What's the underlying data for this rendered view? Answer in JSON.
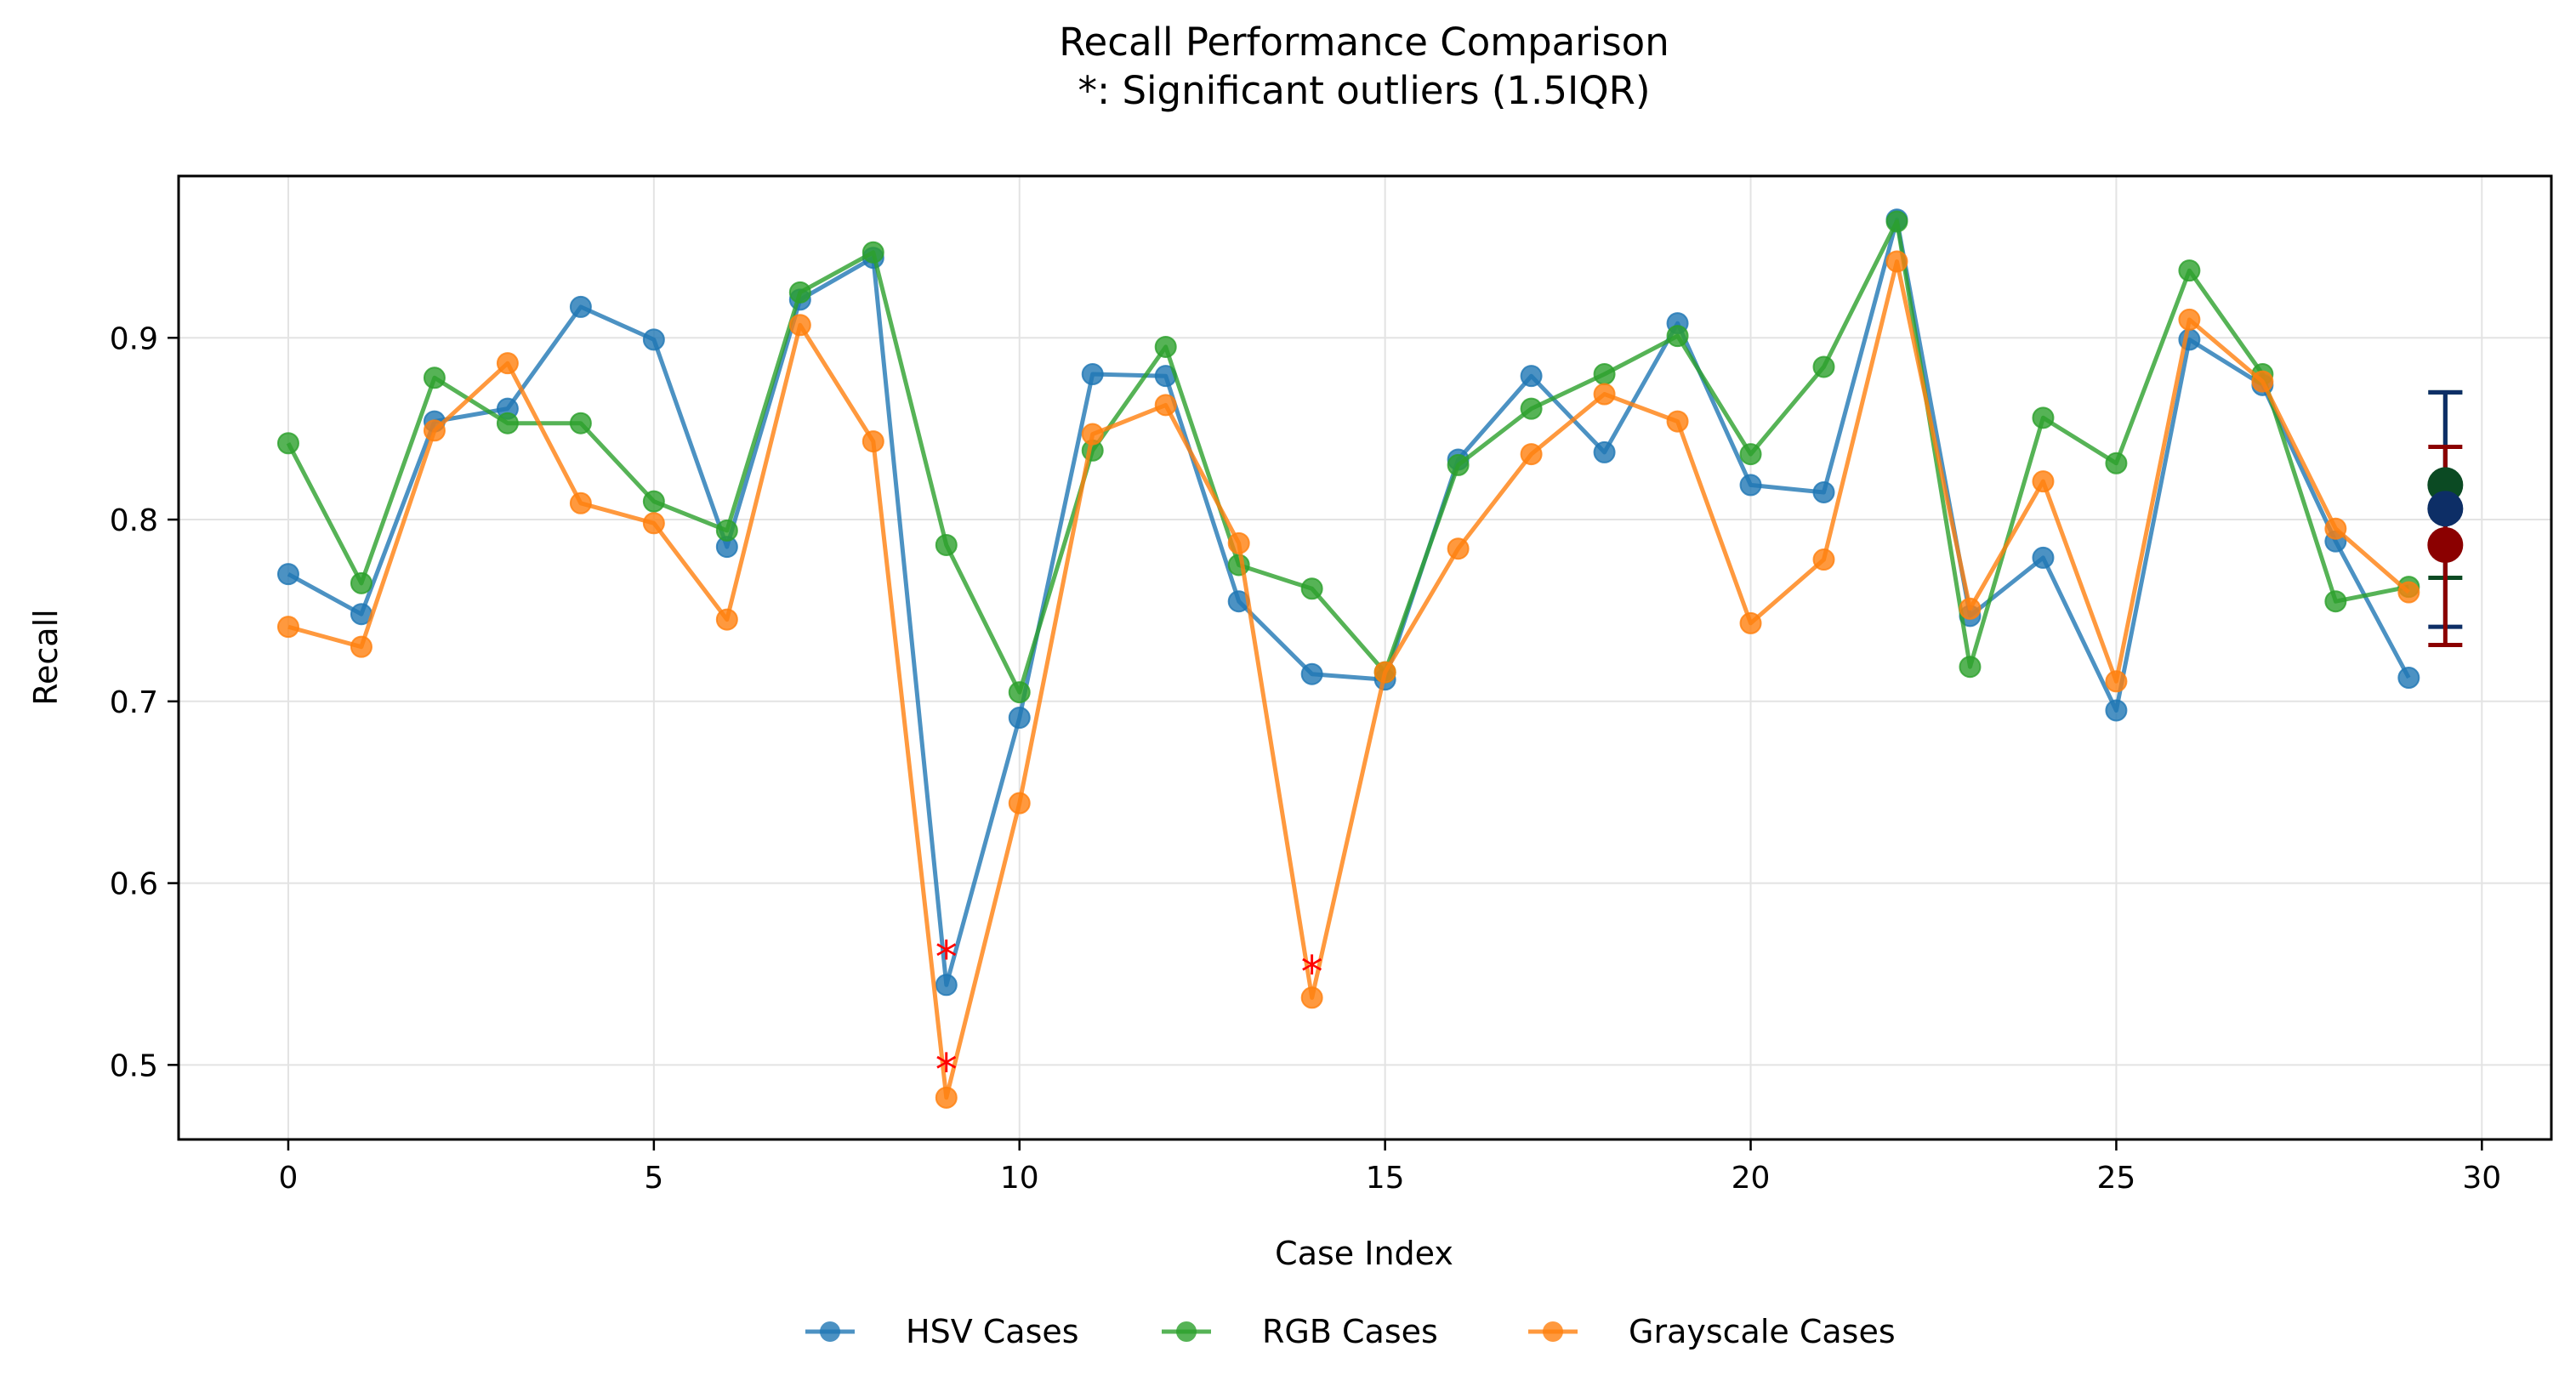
{
  "chart_data": {
    "type": "line",
    "title": "Recall Performance Comparison",
    "subtitle": "*: Significant outliers (1.5IQR)",
    "xlabel": "Case Index",
    "ylabel": "Recall",
    "xlim": [
      -1.5,
      30.95
    ],
    "ylim": [
      0.459,
      0.989
    ],
    "xticks": [
      0,
      5,
      10,
      15,
      20,
      25,
      30
    ],
    "yticks": [
      0.5,
      0.6,
      0.7,
      0.8,
      0.9
    ],
    "xtick_labels": [
      "0",
      "5",
      "10",
      "15",
      "20",
      "25",
      "30"
    ],
    "ytick_labels": [
      "0.5",
      "0.6",
      "0.7",
      "0.8",
      "0.9"
    ],
    "grid": true,
    "legend_position": "bottom-center",
    "x": [
      0,
      1,
      2,
      3,
      4,
      5,
      6,
      7,
      8,
      9,
      10,
      11,
      12,
      13,
      14,
      15,
      16,
      17,
      18,
      19,
      20,
      21,
      22,
      23,
      24,
      25,
      26,
      27,
      28,
      29
    ],
    "series": [
      {
        "name": "HSV Cases",
        "color": "#1f77b4",
        "values": [
          0.77,
          0.748,
          0.854,
          0.861,
          0.917,
          0.899,
          0.785,
          0.921,
          0.944,
          0.544,
          0.691,
          0.88,
          0.879,
          0.755,
          0.715,
          0.712,
          0.833,
          0.879,
          0.837,
          0.908,
          0.819,
          0.815,
          0.965,
          0.747,
          0.779,
          0.695,
          0.899,
          0.874,
          0.788,
          0.713
        ]
      },
      {
        "name": "RGB Cases",
        "color": "#2ca02c",
        "values": [
          0.842,
          0.765,
          0.878,
          0.853,
          0.853,
          0.81,
          0.794,
          0.925,
          0.947,
          0.786,
          0.705,
          0.838,
          0.895,
          0.775,
          0.762,
          0.716,
          0.83,
          0.861,
          0.88,
          0.901,
          0.836,
          0.884,
          0.964,
          0.719,
          0.856,
          0.831,
          0.937,
          0.88,
          0.755,
          0.763
        ]
      },
      {
        "name": "Grayscale Cases",
        "color": "#ff7f0e",
        "values": [
          0.741,
          0.73,
          0.849,
          0.886,
          0.809,
          0.798,
          0.745,
          0.907,
          0.843,
          0.482,
          0.644,
          0.847,
          0.863,
          0.787,
          0.537,
          0.716,
          0.784,
          0.836,
          0.869,
          0.854,
          0.743,
          0.778,
          0.942,
          0.751,
          0.821,
          0.711,
          0.91,
          0.876,
          0.795,
          0.76
        ]
      }
    ],
    "outliers": [
      {
        "series": "HSV Cases",
        "x": 9,
        "y": 0.563
      },
      {
        "series": "Grayscale Cases",
        "x": 9,
        "y": 0.501
      },
      {
        "series": "Grayscale Cases",
        "x": 14,
        "y": 0.555
      }
    ],
    "outlier_marker": "*",
    "outlier_color": "#ff0000",
    "summary_points": [
      {
        "series": "RGB Cases",
        "mean": 0.819,
        "low": 0.768,
        "high": 0.87,
        "color": "#0b4a23"
      },
      {
        "series": "HSV Cases",
        "mean": 0.806,
        "low": 0.741,
        "high": 0.87,
        "color": "#0d2e66"
      },
      {
        "series": "Grayscale Cases",
        "mean": 0.786,
        "low": 0.731,
        "high": 0.84,
        "color": "#8b0000"
      }
    ],
    "summary_x": 29.5
  }
}
